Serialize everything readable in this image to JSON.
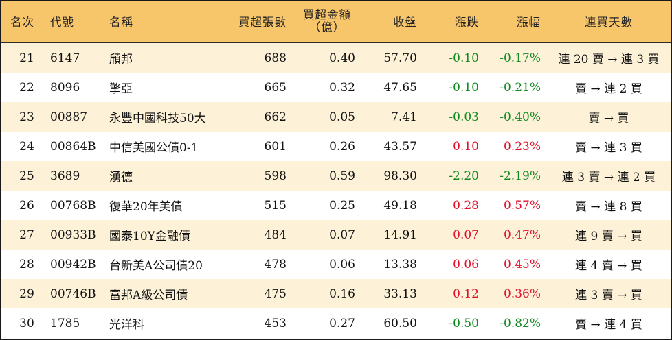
{
  "colors": {
    "header_bg": "#f8c66a",
    "stripe": "#fdf1d8",
    "up": "#e0102a",
    "down": "#118a1f"
  },
  "headers": {
    "rank": "名次",
    "code": "代號",
    "name": "名稱",
    "volume": "買超張數",
    "amount_line1": "買超金額",
    "amount_line2": "（億）",
    "close": "收盤",
    "change": "漲跌",
    "pct": "漲幅",
    "streak": "連買天數"
  },
  "rows": [
    {
      "rank": "21",
      "code": "6147",
      "name": "頎邦",
      "volume": "688",
      "amount": "0.40",
      "close": "57.70",
      "change": "-0.10",
      "pct": "-0.17%",
      "streak": "連 20 賣 → 連 3 買",
      "dir": "down"
    },
    {
      "rank": "22",
      "code": "8096",
      "name": "擎亞",
      "volume": "665",
      "amount": "0.32",
      "close": "47.65",
      "change": "-0.10",
      "pct": "-0.21%",
      "streak": "賣 → 連 2 買",
      "dir": "down"
    },
    {
      "rank": "23",
      "code": "00887",
      "name": "永豐中國科技50大",
      "volume": "662",
      "amount": "0.05",
      "close": "7.41",
      "change": "-0.03",
      "pct": "-0.40%",
      "streak": "賣 → 買",
      "dir": "down"
    },
    {
      "rank": "24",
      "code": "00864B",
      "name": "中信美國公債0-1",
      "volume": "601",
      "amount": "0.26",
      "close": "43.57",
      "change": "0.10",
      "pct": "0.23%",
      "streak": "賣 → 連 3 買",
      "dir": "up"
    },
    {
      "rank": "25",
      "code": "3689",
      "name": "湧德",
      "volume": "598",
      "amount": "0.59",
      "close": "98.30",
      "change": "-2.20",
      "pct": "-2.19%",
      "streak": "連 3 賣 → 連 2 買",
      "dir": "down"
    },
    {
      "rank": "26",
      "code": "00768B",
      "name": "復華20年美債",
      "volume": "515",
      "amount": "0.25",
      "close": "49.18",
      "change": "0.28",
      "pct": "0.57%",
      "streak": "賣 → 連 8 買",
      "dir": "up"
    },
    {
      "rank": "27",
      "code": "00933B",
      "name": "國泰10Y金融債",
      "volume": "484",
      "amount": "0.07",
      "close": "14.91",
      "change": "0.07",
      "pct": "0.47%",
      "streak": "連 9 賣 → 買",
      "dir": "up"
    },
    {
      "rank": "28",
      "code": "00942B",
      "name": "台新美A公司債20",
      "volume": "478",
      "amount": "0.06",
      "close": "13.38",
      "change": "0.06",
      "pct": "0.45%",
      "streak": "連 4 賣 → 買",
      "dir": "up"
    },
    {
      "rank": "29",
      "code": "00746B",
      "name": "富邦A級公司債",
      "volume": "475",
      "amount": "0.16",
      "close": "33.13",
      "change": "0.12",
      "pct": "0.36%",
      "streak": "連 3 賣 → 買",
      "dir": "up"
    },
    {
      "rank": "30",
      "code": "1785",
      "name": "光洋科",
      "volume": "453",
      "amount": "0.27",
      "close": "60.50",
      "change": "-0.50",
      "pct": "-0.82%",
      "streak": "賣 → 連 4 買",
      "dir": "down"
    }
  ]
}
